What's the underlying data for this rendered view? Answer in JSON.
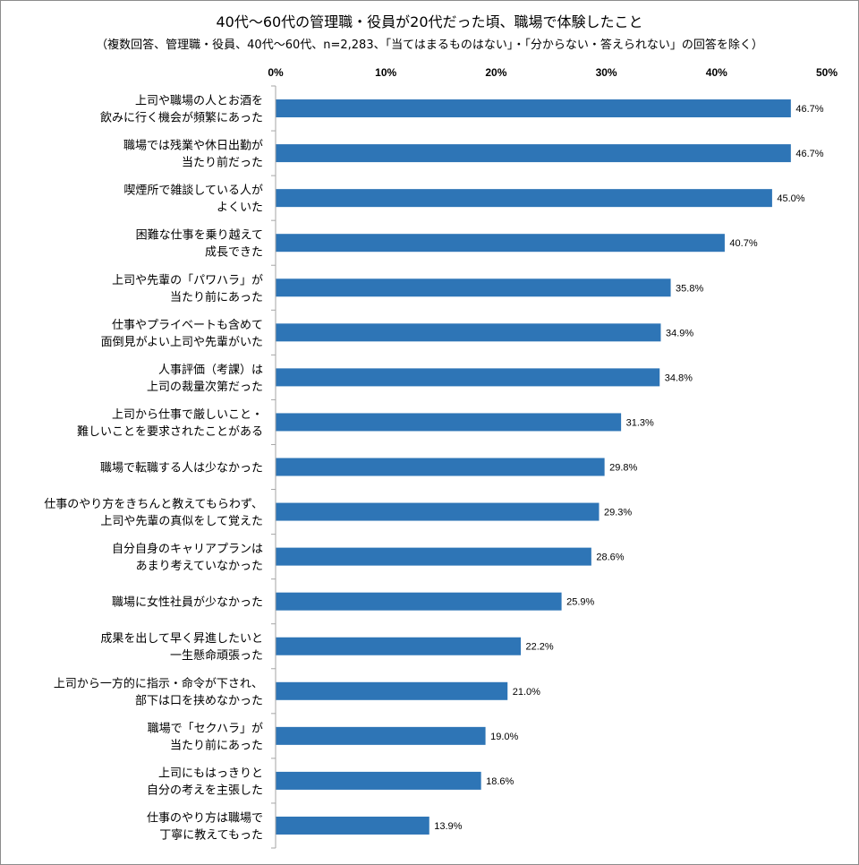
{
  "chart_data": {
    "type": "bar",
    "orientation": "horizontal",
    "title": "40代～60代の管理職・役員が20代だった頃、職場で体験したこと",
    "subtitle": "（複数回答、管理職・役員、40代～60代、n=2,283、「当てはまるものはない」・「分からない・答えられない」の回答を除く）",
    "xlim": [
      0,
      50
    ],
    "ticks": [
      0,
      10,
      20,
      30,
      40,
      50
    ],
    "tick_labels": [
      "0%",
      "10%",
      "20%",
      "30%",
      "40%",
      "50%"
    ],
    "axis_position": "top",
    "grid": false,
    "legend": "none",
    "bar_color": "#2e75b6",
    "categories": [
      [
        "上司や職場の人とお酒を",
        "飲みに行く機会が頻繁にあった"
      ],
      [
        "職場では残業や休日出勤が",
        "当たり前だった"
      ],
      [
        "喫煙所で雑談している人が",
        "よくいた"
      ],
      [
        "困難な仕事を乗り越えて",
        "成長できた"
      ],
      [
        "上司や先輩の「パワハラ」が",
        "当たり前にあった"
      ],
      [
        "仕事やプライベートも含めて",
        "面倒見がよい上司や先輩がいた"
      ],
      [
        "人事評価（考課）は",
        "上司の裁量次第だった"
      ],
      [
        "上司から仕事で厳しいこと・",
        "難しいことを要求されたことがある"
      ],
      [
        "職場で転職する人は少なかった"
      ],
      [
        "仕事のやり方をきちんと教えてもらわず、",
        "上司や先輩の真似をして覚えた"
      ],
      [
        "自分自身のキャリアプランは",
        "あまり考えていなかった"
      ],
      [
        "職場に女性社員が少なかった"
      ],
      [
        "成果を出して早く昇進したいと",
        "一生懸命頑張った"
      ],
      [
        "上司から一方的に指示・命令が下され、",
        "部下は口を挟めなかった"
      ],
      [
        "職場で「セクハラ」が",
        "当たり前にあった"
      ],
      [
        "上司にもはっきりと",
        "自分の考えを主張した"
      ],
      [
        "仕事のやり方は職場で",
        "丁寧に教えてもった"
      ]
    ],
    "values": [
      46.7,
      46.7,
      45.0,
      40.7,
      35.8,
      34.9,
      34.8,
      31.3,
      29.8,
      29.3,
      28.6,
      25.9,
      22.2,
      21.0,
      19.0,
      18.6,
      13.9
    ],
    "value_labels": [
      "46.7%",
      "46.7%",
      "45.0%",
      "40.7%",
      "35.8%",
      "34.9%",
      "34.8%",
      "31.3%",
      "29.8%",
      "29.3%",
      "28.6%",
      "25.9%",
      "22.2%",
      "21.0%",
      "19.0%",
      "18.6%",
      "13.9%"
    ]
  }
}
